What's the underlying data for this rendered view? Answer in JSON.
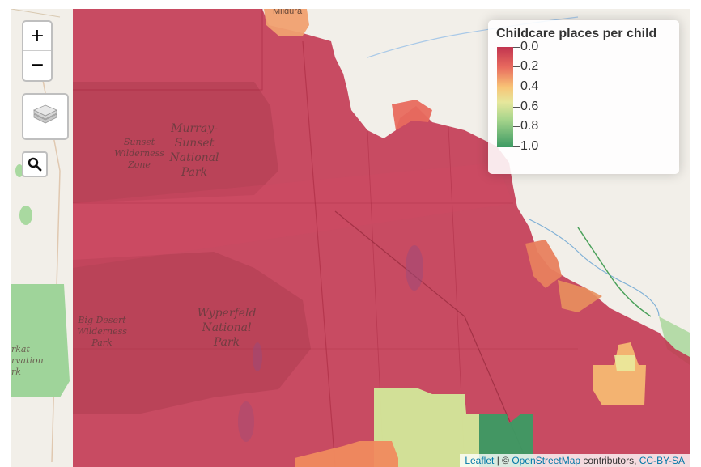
{
  "map": {
    "place_labels": {
      "mildura": "Mildura",
      "murray_sunset_1": "Murray-",
      "murray_sunset_2": "Sunset",
      "murray_sunset_3": "National",
      "murray_sunset_4": "Park",
      "sunset_wild_1": "Sunset",
      "sunset_wild_2": "Wilderness",
      "sunset_wild_3": "Zone",
      "big_desert_1": "Big Desert",
      "big_desert_2": "Wilderness",
      "big_desert_3": "Park",
      "wyperfeld_1": "Wyperfeld",
      "wyperfeld_2": "National",
      "wyperfeld_3": "Park",
      "ngarkat_1": "rkat",
      "ngarkat_2": "rvation",
      "ngarkat_3": "rk"
    },
    "colors": {
      "low": "#c1344f",
      "low_mid": "#e86a5e",
      "mid": "#f8c476",
      "mid_high": "#d6e79a",
      "high": "#3c9a63"
    }
  },
  "controls": {
    "zoom_in": "+",
    "zoom_out": "−",
    "layers_icon": "layers-icon",
    "search_icon": "search-icon"
  },
  "legend": {
    "title": "Childcare places per child",
    "labels": [
      "0.0",
      "0.2",
      "0.4",
      "0.6",
      "0.8",
      "1.0"
    ]
  },
  "attribution": {
    "leaflet": "Leaflet",
    "separator": " | © ",
    "osm": "OpenStreetMap",
    "contributors": " contributors, ",
    "license": "CC-BY-SA"
  }
}
